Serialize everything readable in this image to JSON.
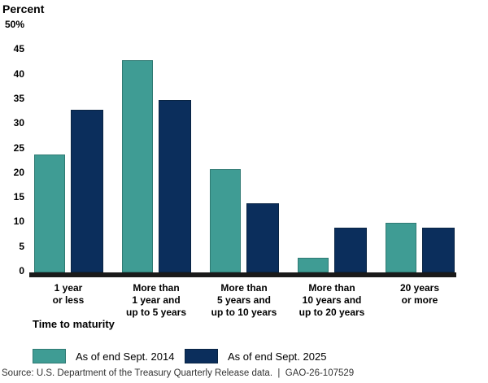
{
  "title": "Percent",
  "chart_data": {
    "type": "bar",
    "title": "Percent",
    "xlabel": "Time to maturity",
    "ylabel": "Percent",
    "ylim": [
      0,
      50
    ],
    "yticks": [
      0,
      5,
      10,
      15,
      20,
      25,
      30,
      35,
      40,
      45,
      50
    ],
    "ytick_labels": [
      "0",
      "5",
      "10",
      "15",
      "20",
      "25",
      "30",
      "35",
      "40",
      "45",
      "50%"
    ],
    "grid": false,
    "legend_position": "bottom",
    "categories": [
      "1 year or less",
      "More than 1 year and up to 5 years",
      "More than 5 years and up to 10 years",
      "More than 10 years and up to 20 years",
      "20 years or more"
    ],
    "category_lines": [
      [
        "1 year",
        "or less"
      ],
      [
        "More than",
        "1 year and",
        "up to 5 years"
      ],
      [
        "More than",
        "5 years and",
        "up to 10 years"
      ],
      [
        "More than",
        "10 years and",
        "up to 20 years"
      ],
      [
        "20 years",
        "or more"
      ]
    ],
    "series": [
      {
        "name": "As of end Sept. 2014",
        "color": "#3F9C94",
        "border_color": "#2F7A73",
        "values": [
          24,
          43,
          21,
          3,
          10
        ]
      },
      {
        "name": "As of end Sept. 2025",
        "color": "#0B2E5C",
        "border_color": "#092443",
        "values": [
          33,
          35,
          14,
          9,
          9
        ]
      }
    ],
    "axis_line_color": "#1a1a1a"
  },
  "source_note": "Source: U.S. Department of the Treasury Quarterly Release data.  |  GAO-26-107529"
}
